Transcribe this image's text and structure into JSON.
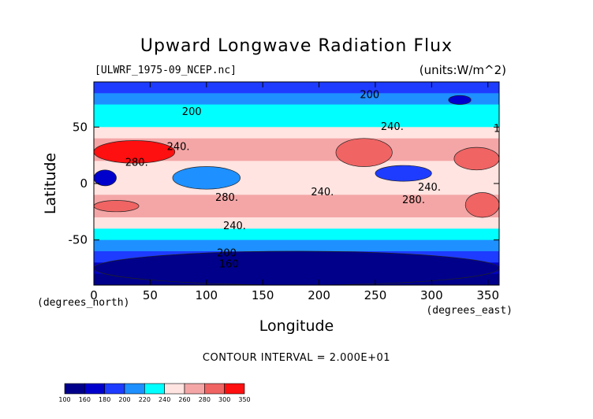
{
  "title": "Upward Longwave Radiation Flux",
  "file_label": "[ULWRF_1975-09_NCEP.nc]",
  "units_label": "(units:W/m^2)",
  "x_unit_label": "(degrees_east)",
  "y_unit_label": "(degrees_north)",
  "contour_interval": "CONTOUR INTERVAL = 2.000E+01",
  "chart_data": {
    "type": "heatmap",
    "title": "Upward Longwave Radiation Flux",
    "xlabel": "Longitude",
    "ylabel": "Latitude",
    "xlim": [
      0,
      360
    ],
    "ylim": [
      -90,
      90
    ],
    "x_ticks": [
      0,
      50,
      100,
      150,
      200,
      250,
      300,
      350
    ],
    "y_ticks": [
      -50,
      0,
      50
    ],
    "units": "W/m^2",
    "contour_levels": [
      100,
      160,
      180,
      200,
      220,
      240,
      260,
      280,
      300,
      350
    ],
    "colorbar_labels": [
      "100",
      "160",
      "180",
      "200",
      "220",
      "240",
      "260",
      "280",
      "300",
      "350"
    ],
    "colorbar_colors": [
      "#00008b",
      "#0000cd",
      "#1e3cff",
      "#1e90ff",
      "#00ffff",
      "#ffe4e1",
      "#f4a6a6",
      "#f06464",
      "#ff1010"
    ],
    "contour_labels": [
      {
        "text": "200",
        "lon": 245,
        "lat": 78
      },
      {
        "text": "200",
        "lon": 87,
        "lat": 63
      },
      {
        "text": "240.",
        "lon": 265,
        "lat": 50
      },
      {
        "text": "1",
        "lon": 358,
        "lat": 48
      },
      {
        "text": "240.",
        "lon": 75,
        "lat": 32
      },
      {
        "text": "280.",
        "lon": 38,
        "lat": 18
      },
      {
        "text": "240.",
        "lon": 203,
        "lat": -8
      },
      {
        "text": "240.",
        "lon": 298,
        "lat": -4
      },
      {
        "text": "280.",
        "lon": 118,
        "lat": -13
      },
      {
        "text": "280.",
        "lon": 284,
        "lat": -15
      },
      {
        "text": "240.",
        "lon": 125,
        "lat": -38
      },
      {
        "text": "200",
        "lon": 118,
        "lat": -62
      },
      {
        "text": "160",
        "lon": 120,
        "lat": -72
      }
    ],
    "zonal_profile": [
      {
        "lat": 90,
        "value": 190
      },
      {
        "lat": 80,
        "value": 205
      },
      {
        "lat": 70,
        "value": 215
      },
      {
        "lat": 60,
        "value": 225
      },
      {
        "lat": 50,
        "value": 245
      },
      {
        "lat": 40,
        "value": 260
      },
      {
        "lat": 30,
        "value": 280
      },
      {
        "lat": 20,
        "value": 265
      },
      {
        "lat": 10,
        "value": 240
      },
      {
        "lat": 0,
        "value": 245
      },
      {
        "lat": -10,
        "value": 270
      },
      {
        "lat": -20,
        "value": 280
      },
      {
        "lat": -30,
        "value": 265
      },
      {
        "lat": -40,
        "value": 245
      },
      {
        "lat": -50,
        "value": 220
      },
      {
        "lat": -60,
        "value": 200
      },
      {
        "lat": -70,
        "value": 170
      },
      {
        "lat": -80,
        "value": 150
      },
      {
        "lat": -90,
        "value": 140
      }
    ],
    "features": [
      {
        "lon0": 0,
        "lon1": 72,
        "lat0": 18,
        "lat1": 38,
        "value": 300
      },
      {
        "lon0": 215,
        "lon1": 265,
        "lat0": 15,
        "lat1": 40,
        "value": 285
      },
      {
        "lon0": 320,
        "lon1": 360,
        "lat0": 12,
        "lat1": 32,
        "value": 290
      },
      {
        "lon0": 0,
        "lon1": 20,
        "lat0": -2,
        "lat1": 12,
        "value": 165
      },
      {
        "lon0": 70,
        "lon1": 130,
        "lat0": -5,
        "lat1": 15,
        "value": 215
      },
      {
        "lon0": 250,
        "lon1": 300,
        "lat0": 2,
        "lat1": 16,
        "value": 190
      },
      {
        "lon0": 0,
        "lon1": 40,
        "lat0": -25,
        "lat1": -15,
        "value": 295
      },
      {
        "lon0": 330,
        "lon1": 360,
        "lat0": -30,
        "lat1": -8,
        "value": 285
      },
      {
        "lon0": 0,
        "lon1": 360,
        "lat0": -90,
        "lat1": -60,
        "value": 150
      },
      {
        "lon0": 315,
        "lon1": 335,
        "lat0": 70,
        "lat1": 78,
        "value": 165
      }
    ]
  }
}
